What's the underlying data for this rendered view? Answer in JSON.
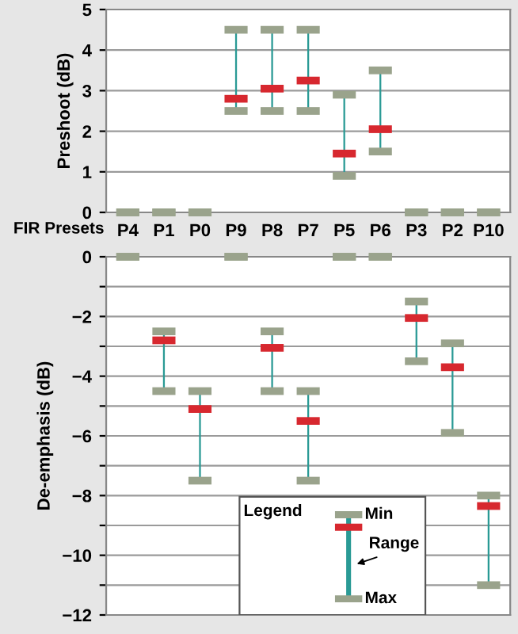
{
  "chart_data": [
    {
      "type": "bar",
      "ylabel": "Preshoot (dB)",
      "xlabel": "FIR Presets",
      "categories": [
        "P4",
        "P1",
        "P0",
        "P9",
        "P8",
        "P7",
        "P5",
        "P6",
        "P3",
        "P2",
        "P10"
      ],
      "series": [
        {
          "color": "#2a9a95",
          "base": [
            null,
            null,
            null,
            2.5,
            2.5,
            2.5,
            0.9,
            1.5,
            null,
            null,
            null
          ],
          "values": [
            null,
            null,
            null,
            2,
            2,
            2,
            2,
            2,
            null,
            null,
            null
          ]
        },
        {
          "type": "scatter",
          "color": "#9aa38c",
          "x": [
            "P4",
            "P1",
            "P0",
            "P9",
            "P8",
            "P7",
            "P5",
            "P6",
            "P3",
            "P2",
            "P10"
          ],
          "values": [
            0,
            0,
            0,
            2.5,
            2.5,
            2.5,
            0.9,
            1.5,
            0,
            0,
            0
          ]
        },
        {
          "type": "scatter",
          "color": "#9aa38c",
          "x": [
            "P4",
            "P1",
            "P0",
            "P9",
            "P8",
            "P7",
            "P5",
            "P6",
            "P3",
            "P2",
            "P10"
          ],
          "values": [
            0,
            0,
            0,
            4.5,
            4.5,
            4.5,
            2.9,
            3.5,
            0,
            0,
            0
          ]
        },
        {
          "type": "scatter",
          "color": "#d7282f",
          "x": [
            "P4",
            "P1",
            "P0",
            "P9",
            "P8",
            "P7",
            "P5",
            "P6",
            "P3",
            "P2",
            "P10"
          ],
          "values": [
            null,
            null,
            null,
            2.8,
            3.05,
            3.25,
            1.45,
            2.05,
            null,
            null,
            null
          ]
        }
      ],
      "ylim": [
        0,
        5
      ],
      "yticks": [
        0,
        1,
        2,
        3,
        4,
        5
      ],
      "grid": "y"
    },
    {
      "type": "bar",
      "ylabel": "De-emphasis (dB)",
      "categories": [
        "P4",
        "P1",
        "P0",
        "P9",
        "P8",
        "P7",
        "P5",
        "P6",
        "P3",
        "P2",
        "P10"
      ],
      "series": [
        {
          "color": "#2a9a95",
          "base": [
            null,
            -4.5,
            -7.5,
            null,
            -4.5,
            -7.5,
            null,
            null,
            -3.5,
            -5.9,
            -11
          ],
          "values": [
            null,
            2,
            3,
            null,
            2,
            3,
            null,
            null,
            2,
            3,
            3
          ]
        },
        {
          "type": "scatter",
          "color": "#9aa38c",
          "x": [
            "P4",
            "P1",
            "P0",
            "P9",
            "P8",
            "P7",
            "P5",
            "P6",
            "P3",
            "P2",
            "P10"
          ],
          "values": [
            0,
            -2.5,
            -4.5,
            0,
            -2.5,
            -4.5,
            0,
            0,
            -1.5,
            -2.9,
            -8
          ]
        },
        {
          "type": "scatter",
          "color": "#9aa38c",
          "x": [
            "P4",
            "P1",
            "P0",
            "P9",
            "P8",
            "P7",
            "P5",
            "P6",
            "P3",
            "P2",
            "P10"
          ],
          "values": [
            0,
            -4.5,
            -7.5,
            0,
            -4.5,
            -7.5,
            0,
            0,
            -3.5,
            -5.9,
            -11
          ]
        },
        {
          "type": "scatter",
          "color": "#d7282f",
          "x": [
            "P4",
            "P1",
            "P0",
            "P9",
            "P8",
            "P7",
            "P5",
            "P6",
            "P3",
            "P2",
            "P10"
          ],
          "values": [
            null,
            -2.8,
            -5.1,
            null,
            -3.05,
            -5.5,
            null,
            null,
            -2.05,
            -3.7,
            -8.35
          ]
        }
      ],
      "ylim": [
        -12,
        0
      ],
      "yticks": [
        0,
        {
          "value": -1,
          "label": null
        },
        -2,
        {
          "value": -3,
          "label": null
        },
        -4,
        {
          "value": -5,
          "label": null
        },
        -6,
        {
          "value": -7,
          "label": null
        },
        -8,
        {
          "value": -9,
          "label": null
        },
        -10,
        {
          "value": -11,
          "label": null
        },
        -12
      ],
      "grid": "y",
      "tick_labels": "y",
      "annotations": [
        "Legend",
        "Min",
        "Range",
        "Max"
      ]
    }
  ]
}
